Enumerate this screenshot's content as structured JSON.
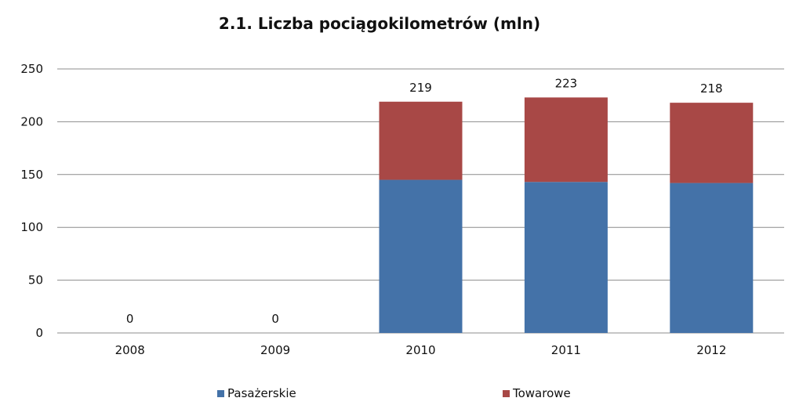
{
  "chart_data": {
    "type": "bar",
    "stacked": true,
    "title": "2.1. Liczba pociągokilometrów (mln)",
    "xlabel": "",
    "ylabel": "",
    "categories": [
      "2008",
      "2009",
      "2010",
      "2011",
      "2012"
    ],
    "series": [
      {
        "name": "Pasażerskie",
        "color": "#4472A8",
        "values": [
          0,
          0,
          145,
          143,
          142
        ]
      },
      {
        "name": "Towarowe",
        "color": "#A84846",
        "values": [
          0,
          0,
          74,
          80,
          76
        ]
      }
    ],
    "totals": [
      "0",
      "0",
      "219",
      "223",
      "218"
    ],
    "ylim": [
      0,
      250
    ],
    "yticks": [
      "0",
      "50",
      "100",
      "150",
      "200",
      "250"
    ],
    "grid": true,
    "legend": "bottom"
  }
}
